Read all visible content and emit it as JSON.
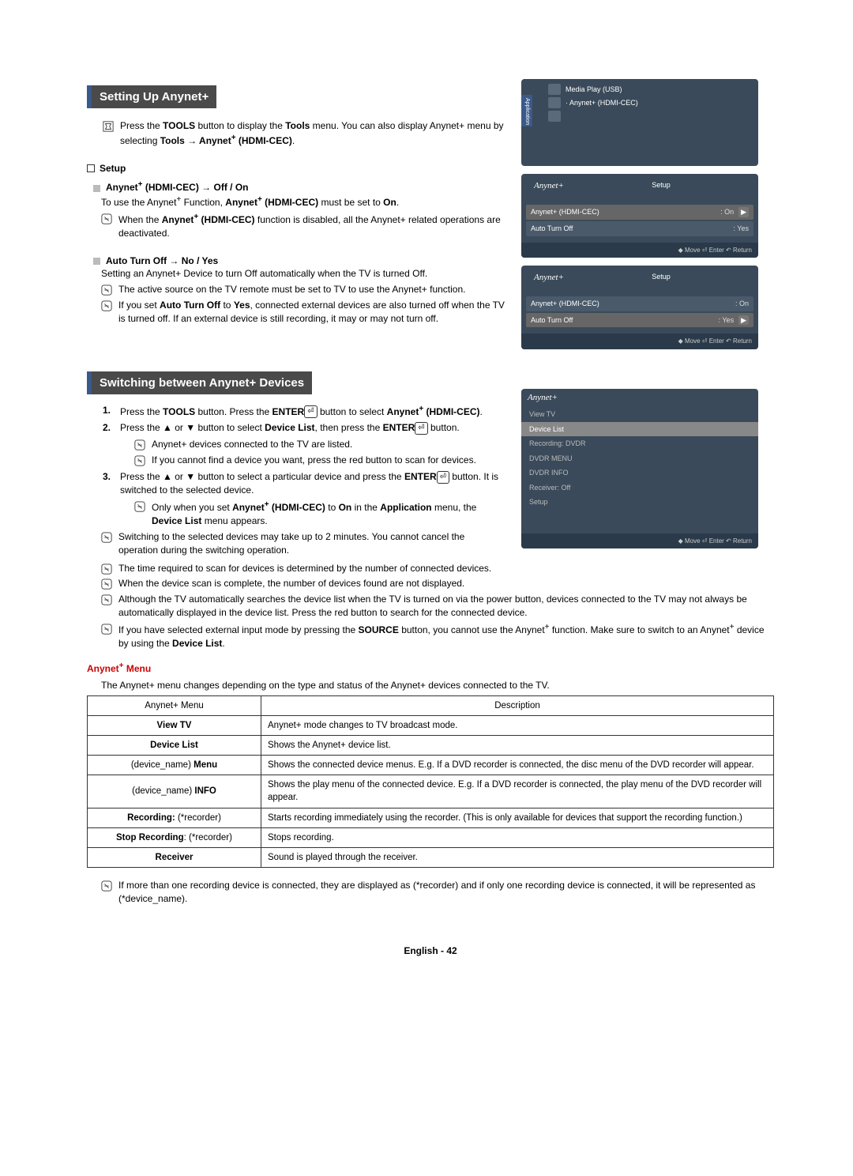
{
  "colors": {
    "heading_bg": "#4a4a4a",
    "heading_border": "#3a5a8a",
    "heading_text": "#ffffff",
    "osd_bg": "#3a4a5a",
    "osd_header_bg": "#2a3a4a",
    "osd_row_bg": "#4a5a6a",
    "osd_sel_bg": "#888888",
    "red": "#c00000",
    "table_border": "#333333"
  },
  "section1": {
    "title": "Setting Up Anynet+",
    "tools_line": "Press the TOOLS button to display the Tools menu. You can also display Anynet+ menu by selecting Tools → Anynet+ (HDMI-CEC).",
    "setup_label": "Setup",
    "hdmi_cec_heading": "Anynet+ (HDMI-CEC) → Off / On",
    "hdmi_cec_line": "To use the Anynet+ Function, Anynet+ (HDMI-CEC) must be set to On.",
    "hdmi_cec_note": "When the Anynet+ (HDMI-CEC) function is disabled, all the Anynet+ related operations are deactivated.",
    "auto_off_heading": "Auto Turn Off → No / Yes",
    "auto_off_line": "Setting an Anynet+ Device to turn Off automatically when the TV is turned Off.",
    "auto_off_note1": "The active source on the TV remote must be set to TV to use the Anynet+ function.",
    "auto_off_note2": "If you set Auto Turn Off to Yes, connected external devices are also turned off when the TV is turned off. If an external device is still recording, it may or may not turn off."
  },
  "osd1": {
    "line1": "Media Play (USB)",
    "line2": "Anynet+ (HDMI-CEC)",
    "app_label": "Application"
  },
  "osd2": {
    "title_brand": "Anynet+",
    "title": "Setup",
    "r1k": "Anynet+ (HDMI-CEC)",
    "r1v": ": On",
    "r2k": "Auto Turn Off",
    "r2v": ": Yes",
    "footer": "◆ Move   ⏎ Enter   ↶ Return"
  },
  "osd3": {
    "title_brand": "Anynet+",
    "title": "Setup",
    "r1k": "Anynet+ (HDMI-CEC)",
    "r1v": ": On",
    "r2k": "Auto Turn Off",
    "r2v": ": Yes",
    "footer": "◆ Move   ⏎ Enter   ↶ Return"
  },
  "section2": {
    "title": "Switching between Anynet+ Devices",
    "step1": "Press the TOOLS button. Press the ENTER ⏎ button to select Anynet+ (HDMI-CEC).",
    "step2": "Press the ▲ or ▼ button to select Device List, then press the ENTER ⏎ button.",
    "step2n1": "Anynet+ devices connected to the TV are listed.",
    "step2n2": "If you cannot find a device you want, press the red button to scan for devices.",
    "step3": "Press the ▲ or ▼ button to select a particular device and press the ENTER ⏎ button. It is switched to the selected device.",
    "step3n1": "Only when you set Anynet+ (HDMI-CEC) to On in the Application menu, the Device List menu appears.",
    "note1": "Switching to the selected devices may take up to 2 minutes. You cannot cancel the operation during the switching operation.",
    "note2": "The time required to scan for devices is determined by the number of connected devices.",
    "note3": "When the device scan is complete, the number of devices found are not displayed.",
    "note4": "Although the TV automatically searches the device list when the TV is turned on via the power button, devices connected to the TV may not always be automatically displayed in the device list. Press the red button to search for the connected device.",
    "note5": "If you have selected external input mode by pressing the SOURCE button, you cannot use the Anynet+ function. Make sure to switch to an Anynet+ device by using the Device List."
  },
  "osd4": {
    "title_brand": "Anynet+",
    "items": [
      "View TV",
      "Device List",
      "Recording: DVDR",
      "DVDR MENU",
      "DVDR INFO",
      "Receiver: Off",
      "Setup"
    ],
    "selected_index": 1,
    "footer": "◆ Move   ⏎ Enter   ↶ Return"
  },
  "menu": {
    "heading": "Anynet+ Menu",
    "intro": "The Anynet+ menu changes depending on the type and status of the Anynet+ devices connected to the TV.",
    "h0": "Anynet+ Menu",
    "h1": "Description",
    "rows": [
      {
        "k": "View TV",
        "v": "Anynet+ mode changes to TV broadcast mode."
      },
      {
        "k": "Device List",
        "v": "Shows the Anynet+ device list."
      },
      {
        "k": "(device_name) Menu",
        "v": "Shows the connected device menus. E.g. If a DVD recorder is connected, the disc menu of the DVD recorder will appear."
      },
      {
        "k": "(device_name) INFO",
        "v": "Shows the play menu of the connected device. E.g. If a DVD recorder is connected, the play menu of the DVD recorder will appear."
      },
      {
        "k": "Recording: (*recorder)",
        "v": "Starts recording immediately using the recorder. (This is only available for devices that support the recording function.)"
      },
      {
        "k": "Stop Recording: (*recorder)",
        "v": "Stops recording."
      },
      {
        "k": "Receiver",
        "v": "Sound is played through the receiver."
      }
    ],
    "footnote": "If more than one recording device is connected, they are displayed as (*recorder) and if only one recording device is connected, it will be represented as (*device_name)."
  },
  "footer": "English - 42"
}
